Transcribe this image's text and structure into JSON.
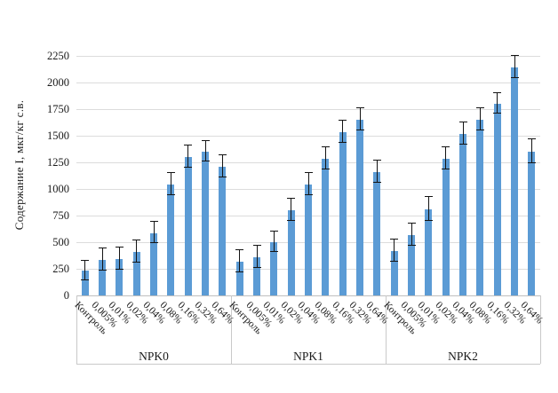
{
  "chart_data": {
    "type": "bar",
    "title": "",
    "ylabel": "Содержание I, мкг/кг с.в.",
    "xlabel": "",
    "ylim": [
      0,
      2250
    ],
    "ytick_step": 250,
    "yticks": [
      0,
      250,
      500,
      750,
      1000,
      1250,
      1500,
      1750,
      2000,
      2250
    ],
    "grid": "horizontal-gridlines-on",
    "legend": "none",
    "bar_color": "#5B9BD5",
    "gridline_color": "#dcdcdc",
    "error_bar_color": "#141414",
    "categories": [
      "Контроль",
      "0,005%",
      "0,01%",
      "0,02%",
      "0,04%",
      "0,08%",
      "0,16%",
      "0,32%",
      "0,64%"
    ],
    "groups": [
      {
        "name": "NPK0",
        "values": [
          230,
          330,
          340,
          410,
          585,
          1045,
          1300,
          1350,
          1210
        ],
        "errors": [
          90,
          100,
          100,
          100,
          95,
          100,
          100,
          95,
          100
        ]
      },
      {
        "name": "NPK1",
        "values": [
          315,
          360,
          500,
          800,
          1040,
          1280,
          1530,
          1650,
          1160
        ],
        "errors": [
          100,
          100,
          95,
          100,
          100,
          100,
          100,
          100,
          100
        ]
      },
      {
        "name": "NPK2",
        "values": [
          420,
          565,
          810,
          1280,
          1520,
          1650,
          1800,
          2140,
          1350
        ],
        "errors": [
          100,
          100,
          110,
          100,
          100,
          100,
          95,
          100,
          105
        ]
      }
    ]
  }
}
